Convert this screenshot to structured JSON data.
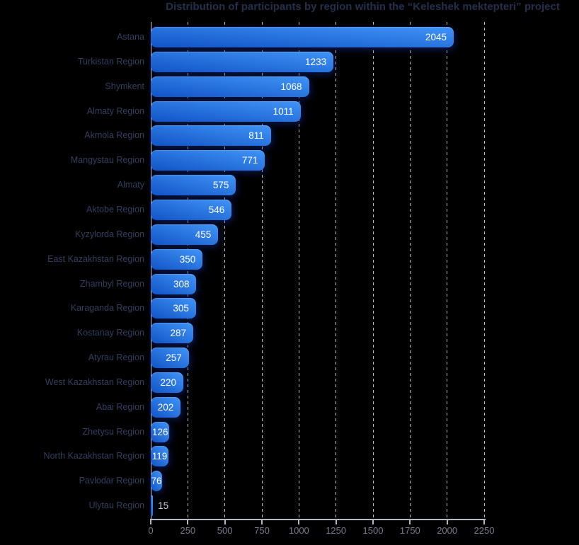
{
  "title": "Distribution of participants by region within the “Keleshek mektepteri” project",
  "chart_data": {
    "type": "bar",
    "orientation": "horizontal",
    "title": "Distribution of participants by region within the “Keleshek mektepteri” project",
    "categories": [
      "Astana",
      "Turkistan Region",
      "Shymkent",
      "Almaty Region",
      "Akmola Region",
      "Mangystau Region",
      "Almaty",
      "Aktobe Region",
      "Kyzylorda Region",
      "East Kazakhstan Region",
      "Zhambyl Region",
      "Karaganda Region",
      "Kostanay Region",
      "Atyrau Region",
      "West Kazakhstan Region",
      "Abai Region",
      "Zhetysu Region",
      "North Kazakhstan Region",
      "Pavlodar Region",
      "Ulytau Region"
    ],
    "values": [
      2045,
      1233,
      1068,
      1011,
      811,
      771,
      575,
      546,
      455,
      350,
      308,
      305,
      287,
      257,
      220,
      202,
      126,
      119,
      76,
      15
    ],
    "xlabel": "",
    "ylabel": "",
    "xlim": [
      0,
      2250
    ],
    "x_ticks": [
      0,
      250,
      500,
      750,
      1000,
      1250,
      1500,
      1750,
      2000,
      2250
    ],
    "grid": "vertical-dashed",
    "legend": "none",
    "value_label_position": "inside-end",
    "colors": {
      "background": "#000000",
      "bar_gradient_start": "#1254c6",
      "bar_gradient_end": "#4094f7",
      "value_label": "#ffffff",
      "value_label_outside": "#c8cdd9",
      "title": "#252f4c",
      "category_label": "#323f5e",
      "tick_label": "#757d92",
      "axis_line": "#b3b8c5",
      "gridline": "#dfe3ed"
    }
  }
}
